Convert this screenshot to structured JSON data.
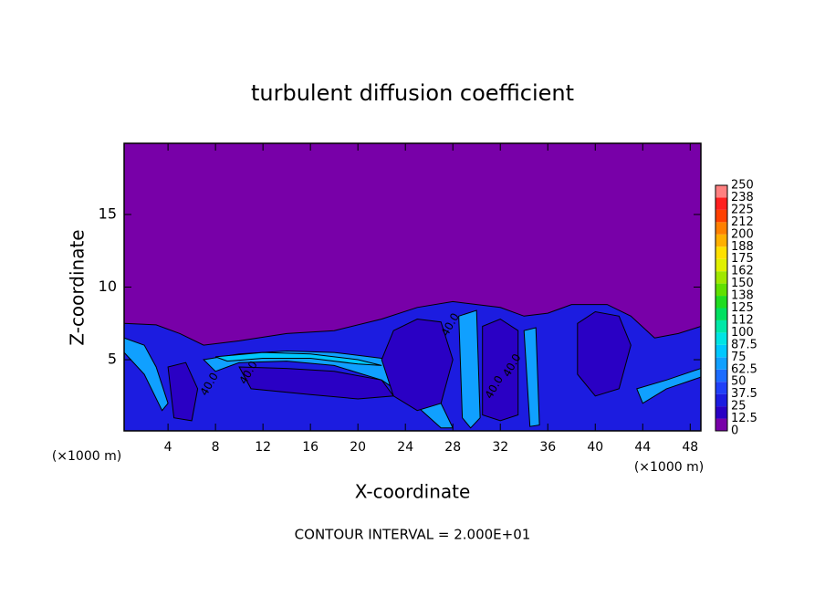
{
  "chart_data": {
    "type": "contour",
    "title": "turbulent diffusion coefficient",
    "x_label": "X-coordinate",
    "y_label": "Z-coordinate",
    "x_unit_labels": [
      "(×1000 m)",
      "(×1000 m)"
    ],
    "footer": "CONTOUR INTERVAL = 2.000E+01",
    "xlim": [
      0.3,
      48.9
    ],
    "ylim": [
      0.1,
      19.9
    ],
    "xticks": [
      4,
      8,
      12,
      16,
      20,
      24,
      28,
      32,
      36,
      40,
      44,
      48
    ],
    "yticks": [
      5,
      10,
      15
    ],
    "background_level": 0,
    "colorbar": {
      "levels": [
        0,
        12.5,
        25,
        37.5,
        50,
        62.5,
        75,
        87.5,
        100,
        112,
        125,
        138,
        150,
        162,
        175,
        188,
        200,
        212,
        225,
        238,
        250
      ],
      "colors": [
        "#7800a8",
        "#2a00c4",
        "#1c1ce0",
        "#2040f8",
        "#1c6cff",
        "#10a0ff",
        "#00c8ff",
        "#00e4e4",
        "#00e8a8",
        "#00e060",
        "#20dc20",
        "#60e000",
        "#a0e800",
        "#e0f000",
        "#ffe000",
        "#ffb000",
        "#ff8000",
        "#ff4000",
        "#ff2020",
        "#ff8080"
      ]
    },
    "regions": [
      {
        "level": 25,
        "x": [
          0.3,
          3,
          5,
          7,
          10,
          14,
          18,
          22,
          25,
          28,
          32,
          34,
          36,
          38,
          41,
          43,
          45,
          47,
          48.9,
          48.9,
          0.3
        ],
        "z": [
          7.5,
          7.4,
          6.8,
          6,
          6.3,
          6.8,
          7,
          7.8,
          8.6,
          9,
          8.6,
          8,
          8.2,
          8.8,
          8.8,
          8,
          6.5,
          6.8,
          7.3,
          0.1,
          0.1
        ]
      },
      {
        "level": 62.5,
        "x": [
          7,
          10,
          14,
          18,
          22,
          25,
          27,
          28,
          27,
          24,
          22,
          18,
          14,
          10,
          8
        ],
        "z": [
          5,
          5.4,
          5.6,
          5.5,
          5.1,
          4,
          2,
          0.3,
          0.3,
          2.5,
          3.6,
          4.6,
          4.9,
          4.8,
          4.2
        ]
      },
      {
        "level": 75,
        "x": [
          8,
          12,
          16,
          20,
          22,
          20,
          16,
          12,
          9
        ],
        "z": [
          5.2,
          5.5,
          5.4,
          5,
          4.6,
          4.7,
          5.1,
          5.1,
          4.9
        ]
      },
      {
        "level": 12.5,
        "x": [
          10,
          14,
          18,
          22,
          23,
          20,
          16,
          11
        ],
        "z": [
          4.5,
          4.4,
          4.2,
          3.6,
          2.5,
          2.3,
          2.6,
          3
        ]
      },
      {
        "level": 12.5,
        "x": [
          23,
          25,
          27,
          28,
          27,
          25,
          23,
          22
        ],
        "z": [
          7,
          7.8,
          7.6,
          5,
          2,
          1.5,
          2.5,
          5
        ]
      },
      {
        "level": 12.5,
        "x": [
          30.5,
          32,
          33.5,
          33.5,
          32,
          30.5
        ],
        "z": [
          7.3,
          7.8,
          7,
          1.2,
          0.8,
          1.2
        ]
      },
      {
        "level": 62.5,
        "x": [
          28.5,
          30,
          30.3,
          29.5,
          28.8
        ],
        "z": [
          8,
          8.4,
          1,
          0.3,
          1
        ]
      },
      {
        "level": 62.5,
        "x": [
          34,
          35,
          35.3,
          34.5
        ],
        "z": [
          7,
          7.2,
          0.5,
          0.4
        ]
      },
      {
        "level": 12.5,
        "x": [
          38.5,
          40,
          42,
          43,
          42,
          40,
          38.5
        ],
        "z": [
          7.5,
          8.3,
          8,
          6,
          3,
          2.5,
          4
        ]
      },
      {
        "level": 62.5,
        "x": [
          43.5,
          46,
          48.9,
          48.9,
          46,
          44
        ],
        "z": [
          3,
          3.6,
          4.4,
          3.8,
          3,
          2
        ]
      },
      {
        "level": 62.5,
        "x": [
          0.3,
          2,
          3,
          4,
          3.5,
          2,
          0.3
        ],
        "z": [
          6.5,
          6,
          4.5,
          2,
          1.5,
          4,
          5.5
        ]
      },
      {
        "level": 12.5,
        "x": [
          4,
          5.5,
          6.5,
          6,
          4.5
        ],
        "z": [
          4.5,
          4.8,
          3,
          0.8,
          1
        ]
      }
    ],
    "contour_labels": [
      {
        "text": "40.0",
        "x": 7.5,
        "z": 3.3
      },
      {
        "text": "40.0",
        "x": 10.8,
        "z": 4.1
      },
      {
        "text": "40.0",
        "x": 27.8,
        "z": 7.4
      },
      {
        "text": "40.0",
        "x": 33,
        "z": 4.6
      },
      {
        "text": "40.0",
        "x": 31.5,
        "z": 3.1
      }
    ]
  }
}
